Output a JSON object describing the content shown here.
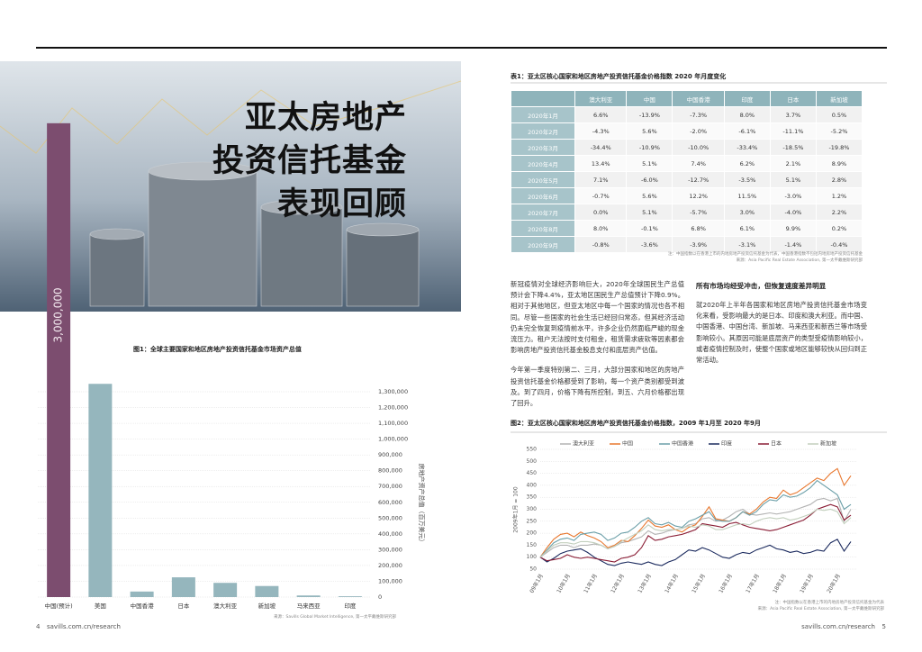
{
  "hero": {
    "title_lines": [
      "亚太房地产",
      "投资信托基金",
      "表现回顾"
    ]
  },
  "chart_data": [
    {
      "type": "bar",
      "title": "图1：全球主要国家和地区房地产投资信托基金市场资产总值",
      "y_label": "房地产资产总值（百万美元）",
      "categories": [
        "中国(预计)",
        "美国",
        "中国香港",
        "日本",
        "澳大利亚",
        "新加坡",
        "马来西亚",
        "印度"
      ],
      "values": [
        3000000,
        1350000,
        35000,
        125000,
        90000,
        70000,
        10000,
        5000
      ],
      "value_labels": [
        "3,000,000",
        null,
        null,
        null,
        null,
        null,
        null,
        null
      ],
      "colors": [
        "#7c4d6f",
        "#95b6bd",
        "#95b6bd",
        "#95b6bd",
        "#95b6bd",
        "#95b6bd",
        "#95b6bd",
        "#95b6bd"
      ],
      "ylim": [
        0,
        1300000
      ],
      "yticks": [
        0,
        {
          "value": 100000,
          "label": "100,000"
        },
        {
          "value": 200000,
          "label": "200,000"
        },
        {
          "value": 300000,
          "label": "300,000"
        },
        {
          "value": 400000,
          "label": "400,000"
        },
        {
          "value": 500000,
          "label": "500,000"
        },
        {
          "value": 600000,
          "label": "600,000"
        },
        {
          "value": 700000,
          "label": "700,000"
        },
        {
          "value": 800000,
          "label": "800,000"
        },
        {
          "value": 900000,
          "label": "900,000"
        },
        {
          "value": 1000000,
          "label": "1,000,000"
        },
        {
          "value": 1100000,
          "label": "1,100,000"
        },
        {
          "value": 1200000,
          "label": "1,200,000"
        },
        {
          "value": 1300000,
          "label": "1,300,000"
        }
      ],
      "grid": true,
      "source": "来源：Savills Global Market Intelligence, 第一太平戴维斯研究部"
    },
    {
      "type": "line",
      "title": "图2：亚太区核心国家和地区房地产投资信托基金价格指数，2009 年1月至 2020 年9月",
      "y_label": "2009年1月 = 100",
      "categories": [
        "09年1月",
        null,
        null,
        null,
        "10年1月",
        null,
        null,
        null,
        "11年1月",
        null,
        null,
        null,
        "12年1月",
        null,
        null,
        null,
        "13年1月",
        null,
        null,
        null,
        "14年1月",
        null,
        null,
        null,
        "15年1月",
        null,
        null,
        null,
        "16年1月",
        null,
        null,
        null,
        "17年1月",
        null,
        null,
        null,
        "18年1月",
        null,
        null,
        null,
        "19年1月",
        null,
        null,
        null,
        "20年1月",
        null,
        null
      ],
      "series": [
        {
          "name": "澳大利亚",
          "color": "#b3b3b3",
          "values": [
            100,
            120,
            140,
            150,
            150,
            140,
            150,
            150,
            155,
            150,
            135,
            145,
            160,
            165,
            175,
            185,
            210,
            195,
            200,
            210,
            215,
            220,
            235,
            240,
            260,
            265,
            250,
            255,
            270,
            290,
            300,
            280,
            275,
            280,
            285,
            280,
            285,
            290,
            300,
            310,
            320,
            340,
            345,
            335,
            345,
            250,
            300
          ]
        },
        {
          "name": "中国",
          "color": "#e8772e",
          "values": [
            100,
            140,
            175,
            195,
            200,
            185,
            205,
            190,
            180,
            165,
            140,
            150,
            170,
            165,
            190,
            220,
            255,
            230,
            225,
            235,
            215,
            205,
            225,
            235,
            270,
            310,
            260,
            255,
            250,
            265,
            290,
            280,
            300,
            330,
            350,
            345,
            380,
            360,
            370,
            390,
            410,
            430,
            420,
            450,
            470,
            400,
            440
          ]
        },
        {
          "name": "中国香港",
          "color": "#6b9fa8",
          "values": [
            100,
            130,
            160,
            175,
            180,
            170,
            195,
            200,
            205,
            195,
            170,
            180,
            200,
            205,
            225,
            250,
            265,
            240,
            235,
            245,
            230,
            225,
            250,
            260,
            275,
            290,
            255,
            250,
            250,
            265,
            290,
            275,
            290,
            320,
            340,
            335,
            360,
            350,
            355,
            370,
            390,
            420,
            400,
            380,
            360,
            300,
            320
          ]
        },
        {
          "name": "印度",
          "color": "#1b2a5e",
          "values": [
            100,
            80,
            95,
            115,
            125,
            130,
            135,
            120,
            100,
            85,
            70,
            65,
            75,
            80,
            75,
            70,
            80,
            70,
            65,
            80,
            90,
            110,
            130,
            125,
            140,
            130,
            115,
            100,
            95,
            110,
            120,
            115,
            130,
            140,
            150,
            135,
            130,
            120,
            125,
            115,
            120,
            130,
            125,
            160,
            175,
            125,
            165
          ]
        },
        {
          "name": "日本",
          "color": "#8a1d35",
          "values": [
            100,
            85,
            90,
            95,
            110,
            100,
            95,
            100,
            95,
            90,
            85,
            80,
            95,
            100,
            110,
            140,
            190,
            170,
            175,
            185,
            190,
            195,
            205,
            215,
            240,
            235,
            230,
            225,
            240,
            245,
            235,
            225,
            220,
            215,
            210,
            215,
            225,
            235,
            245,
            255,
            275,
            300,
            310,
            320,
            310,
            255,
            275
          ]
        },
        {
          "name": "新加坡",
          "color": "#c2cfbd",
          "values": [
            100,
            125,
            150,
            160,
            160,
            155,
            165,
            165,
            160,
            150,
            135,
            145,
            165,
            180,
            195,
            210,
            235,
            215,
            210,
            215,
            215,
            220,
            230,
            225,
            235,
            230,
            215,
            215,
            225,
            235,
            240,
            235,
            250,
            260,
            265,
            260,
            265,
            255,
            260,
            270,
            280,
            300,
            295,
            300,
            290,
            240,
            265
          ]
        }
      ],
      "ylim": [
        50,
        550
      ],
      "yticks": [
        50,
        100,
        150,
        200,
        250,
        300,
        350,
        400,
        450,
        500,
        550
      ],
      "grid": true,
      "legend": "top",
      "notes": [
        "注：中国指数以在香港上市的内地房地产投资信托基金为代表",
        "来源：Asia Pacific Real Estate Association, 第一太平戴维斯研究部"
      ]
    }
  ],
  "table": {
    "title": "表1：亚太区核心国家和地区房地产投资信托基金价格指数 2020 年月度变化",
    "columns": [
      "澳大利亚",
      "中国",
      "中国香港",
      "印度",
      "日本",
      "新加坡"
    ],
    "rows": [
      {
        "label": "2020年1月",
        "cells": [
          "6.6%",
          "-13.9%",
          "-7.3%",
          "8.0%",
          "3.7%",
          "0.5%"
        ]
      },
      {
        "label": "2020年2月",
        "cells": [
          "-4.3%",
          "5.6%",
          "-2.0%",
          "-6.1%",
          "-11.1%",
          "-5.2%"
        ]
      },
      {
        "label": "2020年3月",
        "cells": [
          "-34.4%",
          "-10.9%",
          "-10.0%",
          "-33.4%",
          "-18.5%",
          "-19.8%"
        ]
      },
      {
        "label": "2020年4月",
        "cells": [
          "13.4%",
          "5.1%",
          "7.4%",
          "6.2%",
          "2.1%",
          "8.9%"
        ]
      },
      {
        "label": "2020年5月",
        "cells": [
          "7.1%",
          "-6.0%",
          "-12.7%",
          "-3.5%",
          "5.1%",
          "2.8%"
        ]
      },
      {
        "label": "2020年6月",
        "cells": [
          "-0.7%",
          "5.6%",
          "12.2%",
          "11.5%",
          "-3.0%",
          "1.2%"
        ]
      },
      {
        "label": "2020年7月",
        "cells": [
          "0.0%",
          "5.1%",
          "-5.7%",
          "3.0%",
          "-4.0%",
          "2.2%"
        ]
      },
      {
        "label": "2020年8月",
        "cells": [
          "8.0%",
          "-0.1%",
          "6.8%",
          "6.1%",
          "9.9%",
          "0.2%"
        ]
      },
      {
        "label": "2020年9月",
        "cells": [
          "-0.8%",
          "-3.6%",
          "-3.9%",
          "-3.1%",
          "-1.4%",
          "-0.4%"
        ]
      }
    ],
    "notes": [
      "注：中国指数以在香港上市的内地房地产投资信托基金为代表，中国香港指数不包括内地房地产投资信托基金",
      "来源：Asia Pacific Real Estate Association, 第一太平戴维斯研究部"
    ]
  },
  "body": {
    "left": [
      "新冠疫情对全球经济影响巨大，2020年全球国民生产总值预计会下降4.4%，亚太地区国民生产总值预计下降0.9%。相对于其他地区，但亚太地区中每一个国家的情况也各不相同。尽管一些国家的社会生活已经回归常态，但其经济活动仍未完全恢复到疫情前水平，许多企业仍然面临严峻的现金流压力。租户无法按时支付租金，租赁需求疲软等因素都会影响房地产投资信托基金股息支付和底层资产估值。",
      "今年第一季度特别第二、三月，大部分国家和地区的房地产投资信托基金价格都受到了影响，每一个资产类别都受到波及。到了四月，价格下降有所控制，到五、六月价格都出现了回升。"
    ],
    "right_heading": "所有市场均经受冲击，但恢复速度差异明显",
    "right": [
      "就2020年上半年各国家和地区房地产投资信托基金市场变化来看，受影响最大的是日本、印度和澳大利亚。而中国、中国香港、中国台湾、新加坡、马来西亚和新西兰等市场受影响较小。其原因可能是底层资产的类型受疫情影响较小，或者疫情控制及时，使整个国家或地区能够较快从回归到正常活动。"
    ]
  },
  "footer": {
    "left_page": "4",
    "left_url": "savills.com.cn/research",
    "right_url": "savills.com.cn/research",
    "right_page": "5"
  }
}
